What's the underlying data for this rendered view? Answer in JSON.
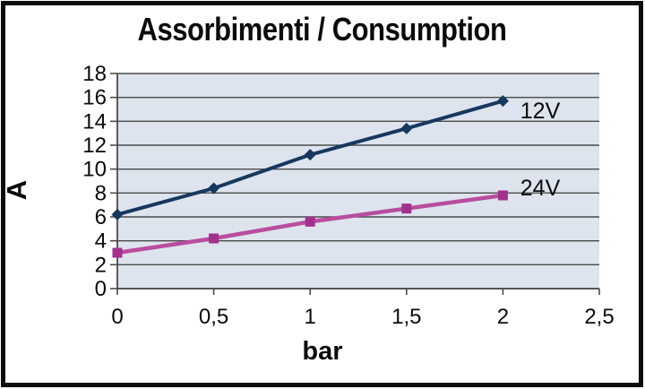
{
  "chart_data": {
    "type": "line",
    "title": "Assorbimenti / Consumption",
    "xlabel": "bar",
    "ylabel": "A",
    "x": [
      0,
      0.5,
      1,
      1.5,
      2
    ],
    "series": [
      {
        "name": "12V",
        "values": [
          6.2,
          8.4,
          11.2,
          13.4,
          15.7
        ],
        "color": "#17375e",
        "marker": "diamond",
        "marker_color": "#17375e",
        "label_anchor": {
          "x": 2.09,
          "y": 14.85
        }
      },
      {
        "name": "24V",
        "values": [
          3.0,
          4.2,
          5.6,
          6.7,
          7.8
        ],
        "color": "#b94d9e",
        "marker": "square",
        "marker_color": "#a2318d",
        "label_anchor": {
          "x": 2.09,
          "y": 8.4
        }
      }
    ],
    "xlim": [
      0,
      2.5
    ],
    "ylim": [
      0,
      18
    ],
    "x_ticks": {
      "values": [
        0,
        0.5,
        1,
        1.5,
        2,
        2.5
      ],
      "labels": [
        "0",
        "0,5",
        "1",
        "1,5",
        "2",
        "2,5"
      ]
    },
    "y_ticks": {
      "values": [
        0,
        2,
        4,
        6,
        8,
        10,
        12,
        14,
        16,
        18
      ],
      "labels": [
        "0",
        "2",
        "4",
        "6",
        "8",
        "10",
        "12",
        "14",
        "16",
        "18"
      ]
    },
    "grid": "horizontal",
    "legend_position": "inline-right",
    "colors": {
      "plot_bg": "#dde4ee",
      "grid": "#4a4a4a",
      "axis": "#4a4a4a",
      "text": "#0b0b0b",
      "frame_border": "#0d0d0d"
    }
  }
}
